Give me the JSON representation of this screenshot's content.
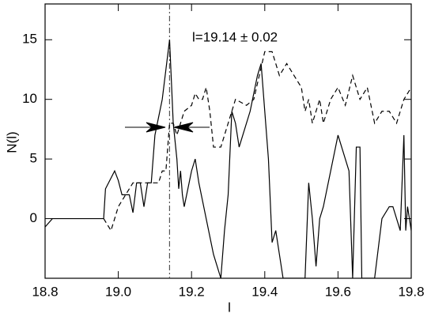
{
  "chart_data": {
    "type": "line",
    "xlabel": "l",
    "ylabel": "N(l)",
    "annotation": "l=19.14 ± 0.02",
    "marker_x": 19.14,
    "xlim": [
      18.8,
      19.8
    ],
    "xticks": [
      18.8,
      {
        "value": 19.0,
        "label": "19.0"
      },
      19.2,
      19.4,
      19.6,
      19.8
    ],
    "ylim": [
      -5,
      18
    ],
    "yticks": [
      0,
      5,
      10,
      15
    ],
    "series": [
      {
        "color": "#000000",
        "dash": false,
        "x": [
          18.8,
          18.82,
          18.96,
          18.965,
          18.99,
          19.0,
          19.01,
          19.03,
          19.04,
          19.05,
          19.06,
          19.07,
          19.08,
          19.09,
          19.1,
          19.12,
          19.14,
          19.15,
          19.16,
          19.165,
          19.17,
          19.175,
          19.18,
          19.19,
          19.2,
          19.21,
          19.22,
          19.24,
          19.26,
          19.28,
          19.29,
          19.3,
          19.31,
          19.32,
          19.33,
          19.34,
          19.36,
          19.38,
          19.39,
          19.4,
          19.41,
          19.42,
          19.43,
          19.44,
          19.45,
          19.48,
          19.51,
          19.52,
          19.53,
          19.54,
          19.55,
          19.56,
          19.58,
          19.6,
          19.63,
          19.64,
          19.65,
          19.66,
          19.665,
          19.7,
          19.72,
          19.74,
          19.75,
          19.77,
          19.78,
          19.785,
          19.79,
          19.8
        ],
        "values": [
          -0.7,
          0,
          0,
          2.5,
          4,
          3.2,
          2,
          2,
          0.5,
          3,
          3,
          1,
          3,
          3,
          7,
          10,
          15,
          8,
          5,
          2.5,
          4,
          2,
          1,
          2.5,
          4,
          5,
          3,
          0,
          -3,
          -5,
          -1,
          2,
          9,
          8,
          6,
          7,
          9,
          12,
          13,
          9,
          5,
          -2,
          -1,
          -3,
          -5,
          -5,
          -5,
          3,
          0,
          -4,
          0,
          1,
          4,
          7,
          4,
          -5,
          6,
          6,
          -5,
          -5,
          0,
          1,
          1,
          -1,
          7,
          -1,
          1,
          -1
        ]
      },
      {
        "color": "#000000",
        "dash": true,
        "x": [
          18.96,
          18.98,
          19.0,
          19.02,
          19.04,
          19.11,
          19.12,
          19.13,
          19.14,
          19.15,
          19.16,
          19.18,
          19.2,
          19.21,
          19.22,
          19.23,
          19.24,
          19.25,
          19.26,
          19.28,
          19.29,
          19.3,
          19.32,
          19.35,
          19.37,
          19.4,
          19.42,
          19.44,
          19.46,
          19.48,
          19.5,
          19.51,
          19.52,
          19.53,
          19.55,
          19.56,
          19.58,
          19.6,
          19.62,
          19.64,
          19.66,
          19.68,
          19.7,
          19.72,
          19.74,
          19.76,
          19.78,
          19.8
        ],
        "values": [
          0,
          -1,
          1,
          2,
          3,
          3,
          4,
          4,
          8,
          8,
          7,
          9,
          9.5,
          10.5,
          10,
          10,
          11,
          9,
          6,
          6,
          7,
          8,
          10,
          9.5,
          10,
          14,
          14,
          12,
          13,
          12,
          11,
          9,
          10,
          8,
          10,
          8,
          10,
          11,
          9.5,
          12,
          10,
          11,
          8,
          9,
          9,
          8,
          10,
          11
        ]
      }
    ]
  }
}
